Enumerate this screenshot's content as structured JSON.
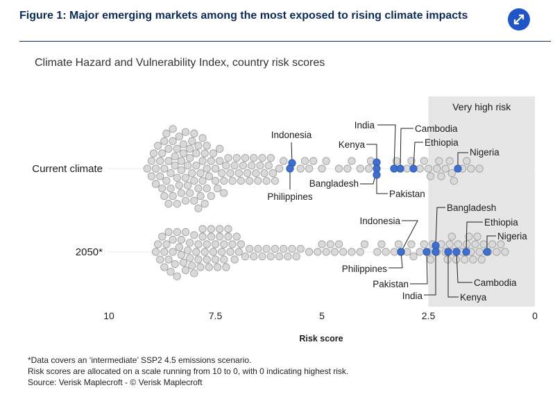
{
  "header": {
    "title": "Figure 1: Major emerging markets among the most exposed to rising climate impacts",
    "expand_icon": "expand-arrows-icon",
    "accent_color": "#1f55c9",
    "title_color": "#0b2a5b"
  },
  "subtitle": "Climate Hazard and Vulnerability Index, country risk scores",
  "chart_data": {
    "type": "scatter",
    "subtype": "beeswarm",
    "xlabel": "Risk score",
    "x_reversed": true,
    "xlim": [
      10,
      0
    ],
    "xticks": [
      10,
      7.5,
      5,
      2.5,
      0
    ],
    "xtick_labels": [
      "10",
      "7.5",
      "5",
      "2.5",
      "0"
    ],
    "rows": [
      "Current climate",
      "2050*"
    ],
    "highlight_zone": {
      "label": "Very high risk",
      "x_from": 2.5,
      "x_to": 0,
      "color": "#e6e6e6"
    },
    "colors": {
      "highlight": "#3d6fd0",
      "other": "#d9d9d9",
      "other_stroke": "#9a9a9a"
    },
    "series": [
      {
        "name": "Current climate",
        "highlighted": [
          {
            "country": "Indonesia",
            "x": 5.65
          },
          {
            "country": "Philippines",
            "x": 5.78
          },
          {
            "country": "India",
            "x": 3.15
          },
          {
            "country": "Cambodia",
            "x": 3.02
          },
          {
            "country": "Kenya",
            "x": 3.6
          },
          {
            "country": "Bangladesh",
            "x": 3.6
          },
          {
            "country": "Pakistan",
            "x": 3.6
          },
          {
            "country": "Ethiopia",
            "x": 2.83
          },
          {
            "country": "Nigeria",
            "x": 1.8
          }
        ],
        "other_scores": [
          9.1,
          9.0,
          9.0,
          8.95,
          8.9,
          8.9,
          8.85,
          8.8,
          8.8,
          8.75,
          8.75,
          8.7,
          8.7,
          8.7,
          8.65,
          8.65,
          8.6,
          8.6,
          8.6,
          8.55,
          8.55,
          8.5,
          8.5,
          8.5,
          8.45,
          8.45,
          8.4,
          8.4,
          8.4,
          8.35,
          8.35,
          8.3,
          8.3,
          8.3,
          8.25,
          8.25,
          8.2,
          8.2,
          8.2,
          8.15,
          8.15,
          8.1,
          8.1,
          8.1,
          8.05,
          8.05,
          8.0,
          8.0,
          8.0,
          7.95,
          7.95,
          7.9,
          7.9,
          7.9,
          7.85,
          7.85,
          7.8,
          7.8,
          7.8,
          7.75,
          7.75,
          7.7,
          7.7,
          7.7,
          7.65,
          7.6,
          7.6,
          7.55,
          7.5,
          7.5,
          7.45,
          7.4,
          7.4,
          7.35,
          7.3,
          7.3,
          7.25,
          7.2,
          7.15,
          7.1,
          7.05,
          7.0,
          6.95,
          6.9,
          6.85,
          6.8,
          6.75,
          6.7,
          6.65,
          6.6,
          6.55,
          6.5,
          6.45,
          6.4,
          6.35,
          6.3,
          6.25,
          6.2,
          6.15,
          6.1,
          6.0,
          5.9,
          5.5,
          5.4,
          5.3,
          5.2,
          5.0,
          4.9,
          4.6,
          4.4,
          4.3,
          4.1,
          3.9,
          3.85,
          3.3,
          3.25,
          3.0,
          2.9,
          2.7,
          2.6,
          2.5,
          2.45,
          2.3,
          2.25,
          2.2,
          2.1,
          2.0,
          1.95,
          1.9,
          1.7,
          1.6,
          1.5,
          1.3
        ]
      },
      {
        "name": "2050*",
        "highlighted": [
          {
            "country": "Indonesia",
            "x": 3.1
          },
          {
            "country": "Philippines",
            "x": 3.1
          },
          {
            "country": "Bangladesh",
            "x": 2.3
          },
          {
            "country": "Pakistan",
            "x": 2.7
          },
          {
            "country": "India",
            "x": 2.5
          },
          {
            "country": "Ethiopia",
            "x": 1.6
          },
          {
            "country": "Nigeria",
            "x": 1.15
          },
          {
            "country": "Cambodia",
            "x": 1.8
          },
          {
            "country": "Kenya",
            "x": 2.0
          }
        ],
        "other_scores": [
          8.9,
          8.85,
          8.8,
          8.75,
          8.7,
          8.7,
          8.65,
          8.6,
          8.6,
          8.55,
          8.5,
          8.5,
          8.45,
          8.4,
          8.4,
          8.35,
          8.3,
          8.3,
          8.25,
          8.2,
          8.2,
          8.15,
          8.1,
          8.1,
          8.05,
          8.0,
          8.0,
          7.95,
          7.9,
          7.9,
          7.85,
          7.8,
          7.8,
          7.75,
          7.7,
          7.7,
          7.65,
          7.6,
          7.6,
          7.55,
          7.5,
          7.5,
          7.45,
          7.4,
          7.4,
          7.35,
          7.3,
          7.3,
          7.25,
          7.2,
          7.2,
          7.15,
          7.1,
          7.05,
          7.0,
          6.95,
          6.9,
          6.8,
          6.7,
          6.6,
          6.5,
          6.4,
          6.3,
          6.2,
          6.1,
          6.0,
          5.9,
          5.8,
          5.7,
          5.6,
          5.5,
          5.3,
          5.1,
          5.0,
          4.9,
          4.8,
          4.7,
          4.6,
          4.5,
          4.3,
          4.1,
          4.0,
          3.7,
          3.6,
          3.5,
          3.3,
          3.2,
          3.0,
          2.9,
          2.85,
          2.7,
          2.6,
          2.5,
          2.45,
          2.4,
          2.3,
          2.2,
          2.1,
          2.05,
          2.0,
          1.95,
          1.9,
          1.85,
          1.8,
          1.7,
          1.65,
          1.6,
          1.55,
          1.5,
          1.45,
          1.4,
          1.35,
          1.3,
          1.25,
          1.2,
          1.1,
          1.0,
          0.9,
          0.8,
          0.7
        ]
      }
    ]
  },
  "footnotes": [
    "*Data covers an ‘intermediate’ SSP2 4.5 emissions scenario.",
    "Risk scores are allocated on a scale running from 10 to 0, with 0 indicating highest risk.",
    "Source: Verisk Maplecroft - © Verisk Maplecroft"
  ]
}
